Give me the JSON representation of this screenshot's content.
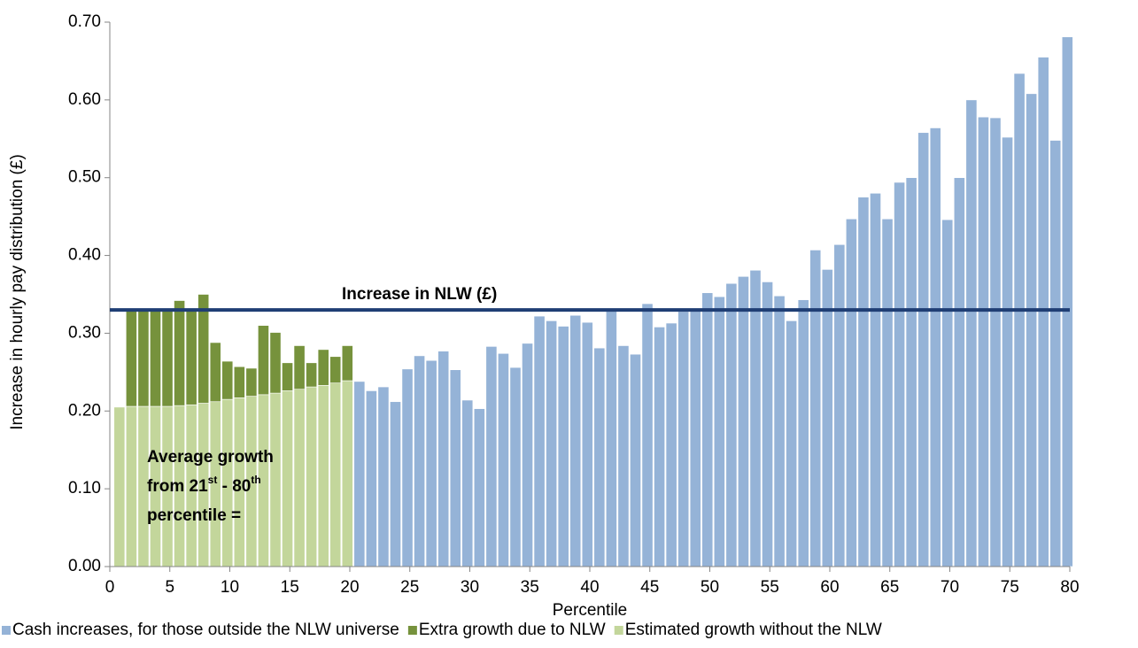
{
  "chart_data": {
    "type": "bar",
    "x_label": "Percentile",
    "y_label": "Increase in hourly pay  distribution (£)",
    "x": [
      1,
      2,
      3,
      4,
      5,
      6,
      7,
      8,
      9,
      10,
      11,
      12,
      13,
      14,
      15,
      16,
      17,
      18,
      19,
      20,
      21,
      22,
      23,
      24,
      25,
      26,
      27,
      28,
      29,
      30,
      31,
      32,
      33,
      34,
      35,
      36,
      37,
      38,
      39,
      40,
      41,
      42,
      43,
      44,
      45,
      46,
      47,
      48,
      49,
      50,
      51,
      52,
      53,
      54,
      55,
      56,
      57,
      58,
      59,
      60,
      61,
      62,
      63,
      64,
      65,
      66,
      67,
      68,
      69,
      70,
      71,
      72,
      73,
      74,
      75,
      76,
      77,
      78,
      79,
      80
    ],
    "stacked": true,
    "series": [
      {
        "name": "Cash increases, for those outside the NLW universe",
        "color": "#95b3d7",
        "values": [
          null,
          null,
          null,
          null,
          null,
          null,
          null,
          null,
          null,
          null,
          null,
          null,
          null,
          null,
          null,
          null,
          null,
          null,
          null,
          null,
          0.238,
          0.226,
          0.231,
          0.212,
          0.254,
          0.271,
          0.265,
          0.277,
          0.253,
          0.214,
          0.203,
          0.283,
          0.274,
          0.256,
          0.287,
          0.322,
          0.316,
          0.309,
          0.323,
          0.314,
          0.281,
          0.33,
          0.284,
          0.273,
          0.338,
          0.308,
          0.313,
          0.328,
          0.33,
          0.352,
          0.347,
          0.364,
          0.373,
          0.381,
          0.366,
          0.348,
          0.316,
          0.343,
          0.407,
          0.382,
          0.414,
          0.447,
          0.475,
          0.48,
          0.447,
          0.494,
          0.5,
          0.558,
          0.564,
          0.446,
          0.5,
          0.6,
          0.578,
          0.577,
          0.552,
          0.634,
          0.608,
          0.655,
          0.548,
          0.681
        ]
      },
      {
        "name": "Estimated growth without the NLW",
        "color": "#c3d69b",
        "legend_order": 2,
        "values": [
          0.205,
          0.206,
          0.206,
          0.206,
          0.206,
          0.207,
          0.208,
          0.21,
          0.212,
          0.215,
          0.217,
          0.219,
          0.221,
          0.223,
          0.226,
          0.228,
          0.231,
          0.233,
          0.236,
          0.239,
          null,
          null,
          null,
          null,
          null,
          null,
          null,
          null,
          null,
          null,
          null,
          null,
          null,
          null,
          null,
          null,
          null,
          null,
          null,
          null,
          null,
          null,
          null,
          null,
          null,
          null,
          null,
          null,
          null,
          null,
          null,
          null,
          null,
          null,
          null,
          null,
          null,
          null,
          null,
          null,
          null,
          null,
          null,
          null,
          null,
          null,
          null,
          null,
          null,
          null,
          null,
          null,
          null,
          null,
          null,
          null,
          null,
          null,
          null,
          null
        ]
      },
      {
        "name": "Extra growth due to NLW",
        "color": "#76923c",
        "legend_order": 1,
        "values": [
          null,
          0.124,
          0.124,
          0.124,
          0.124,
          0.135,
          0.122,
          0.14,
          0.076,
          0.049,
          0.04,
          0.036,
          0.089,
          0.078,
          0.036,
          0.056,
          0.031,
          0.046,
          0.034,
          0.045,
          null,
          null,
          null,
          null,
          null,
          null,
          null,
          null,
          null,
          null,
          null,
          null,
          null,
          null,
          null,
          null,
          null,
          null,
          null,
          null,
          null,
          null,
          null,
          null,
          null,
          null,
          null,
          null,
          null,
          null,
          null,
          null,
          null,
          null,
          null,
          null,
          null,
          null,
          null,
          null,
          null,
          null,
          null,
          null,
          null,
          null,
          null,
          null,
          null,
          null,
          null,
          null,
          null,
          null,
          null,
          null,
          null,
          null,
          null,
          null
        ]
      }
    ],
    "reference_line": {
      "value": 0.33,
      "label": "Increase in NLW (£)",
      "color": "#1f3e74"
    },
    "annotation": [
      "Average growth",
      "from 21",
      "st",
      " - 80",
      "th",
      "percentile ="
    ],
    "xlim": [
      0,
      80
    ],
    "xticks": [
      0,
      5,
      10,
      15,
      20,
      25,
      30,
      35,
      40,
      45,
      50,
      55,
      60,
      65,
      70,
      75,
      80
    ],
    "ylim": [
      0,
      0.7
    ],
    "yticks": [
      {
        "value": 0,
        "label": "0.00"
      },
      {
        "value": 0.1,
        "label": "0.10"
      },
      {
        "value": 0.2,
        "label": "0.20"
      },
      {
        "value": 0.3,
        "label": "0.30"
      },
      {
        "value": 0.4,
        "label": "0.40"
      },
      {
        "value": 0.5,
        "label": "0.50"
      },
      {
        "value": 0.6,
        "label": "0.60"
      },
      {
        "value": 0.7,
        "label": "0.70"
      }
    ],
    "legend": "bottom"
  }
}
